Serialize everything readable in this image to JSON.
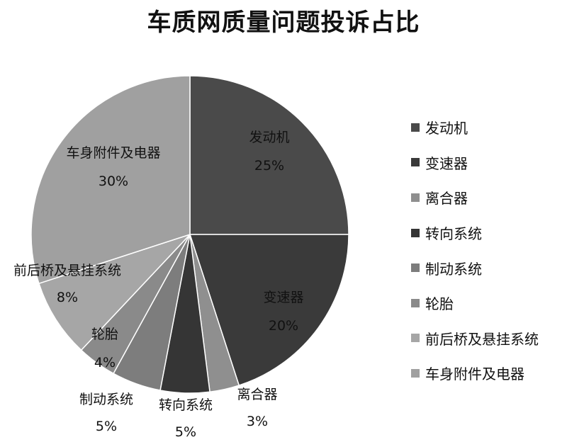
{
  "chart_data": {
    "type": "pie",
    "title": "车质网质量问题投诉占比",
    "legend_position": "right",
    "slices": [
      {
        "name": "发动机",
        "value": 25,
        "label": "25%",
        "color": "#4a4a4a"
      },
      {
        "name": "变速器",
        "value": 20,
        "label": "20%",
        "color": "#3a3a3a"
      },
      {
        "name": "离合器",
        "value": 3,
        "label": "3%",
        "color": "#8f8f8f"
      },
      {
        "name": "转向系统",
        "value": 5,
        "label": "5%",
        "color": "#353535"
      },
      {
        "name": "制动系统",
        "value": 5,
        "label": "5%",
        "color": "#7d7d7d"
      },
      {
        "name": "轮胎",
        "value": 4,
        "label": "4%",
        "color": "#8a8a8a"
      },
      {
        "name": "前后桥及悬挂系统",
        "value": 8,
        "label": "8%",
        "color": "#a6a6a6"
      },
      {
        "name": "车身附件及电器",
        "value": 30,
        "label": "30%",
        "color": "#a0a0a0"
      }
    ]
  }
}
